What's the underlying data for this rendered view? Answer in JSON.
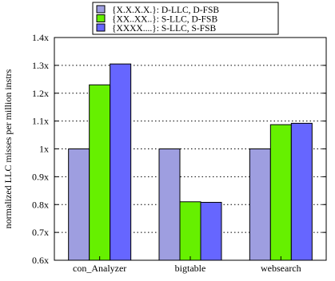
{
  "chart_data": {
    "type": "bar",
    "title": "",
    "xlabel": "",
    "ylabel": "normalized LLC misses per million instrs",
    "categories": [
      "con_Analyzer",
      "bigtable",
      "websearch"
    ],
    "series": [
      {
        "name": "{X.X.X.X.}: D-LLC, D-FSB",
        "values": [
          1.0,
          1.0,
          1.0
        ],
        "color": "#9e9ee0"
      },
      {
        "name": "{XX..XX..}: S-LLC, D-FSB",
        "values": [
          1.23,
          0.81,
          1.087
        ],
        "color": "#66f000"
      },
      {
        "name": "{XXXX....}: S-LLC, S-FSB",
        "values": [
          1.305,
          0.808,
          1.092
        ],
        "color": "#6666ff"
      }
    ],
    "ylim": [
      0.6,
      1.4
    ],
    "yticks": [
      0.6,
      0.7,
      0.8,
      0.9,
      1.0,
      1.1,
      1.2,
      1.3,
      1.4
    ],
    "ytick_labels": [
      "0.6x",
      "0.7x",
      "0.8x",
      "0.9x",
      "1x",
      "1.1x",
      "1.2x",
      "1.3x",
      "1.4x"
    ],
    "grid": true,
    "legend_position": "top"
  }
}
